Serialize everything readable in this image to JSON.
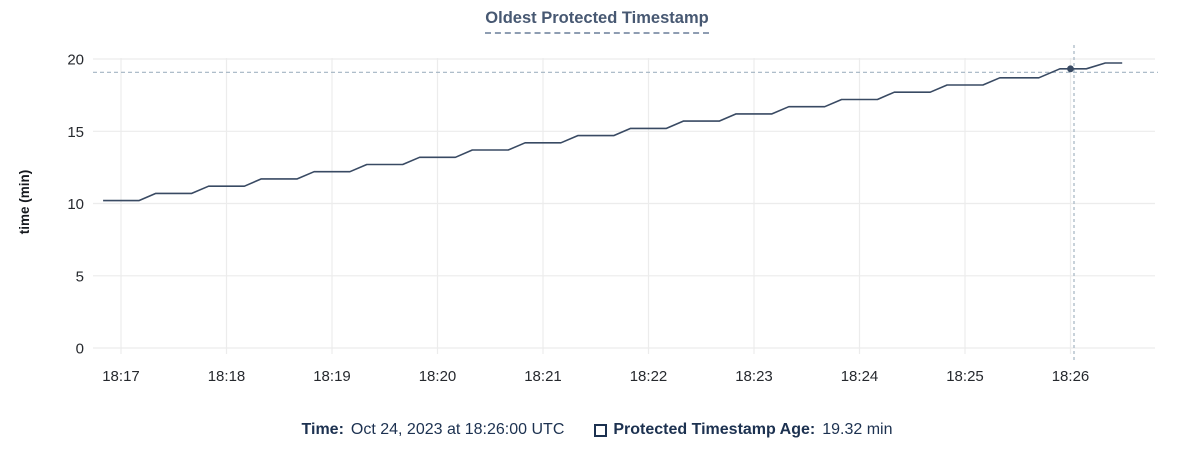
{
  "page": {
    "background": "#ffffff"
  },
  "chart": {
    "title": "Oldest Protected Timestamp",
    "y_axis_label": "time (min)"
  },
  "legend": {
    "time_label": "Time:",
    "time_value": "Oct 24, 2023 at 18:26:00 UTC",
    "series_swatch_icon": "empty-square-outline",
    "series_label": "Protected Timestamp Age:",
    "series_value": "19.32 min"
  },
  "chart_data": {
    "type": "line",
    "title": "Oldest Protected Timestamp",
    "xlabel": "",
    "ylabel": "time (min)",
    "grid": true,
    "legend_position": "bottom",
    "ylim": [
      0,
      20.5
    ],
    "y_ticks": [
      0,
      5,
      10,
      15,
      20
    ],
    "x_ticks": [
      {
        "t": 17,
        "label": "18:17"
      },
      {
        "t": 18,
        "label": "18:18"
      },
      {
        "t": 19,
        "label": "18:19"
      },
      {
        "t": 20,
        "label": "18:20"
      },
      {
        "t": 21,
        "label": "18:21"
      },
      {
        "t": 22,
        "label": "18:22"
      },
      {
        "t": 23,
        "label": "18:23"
      },
      {
        "t": 24,
        "label": "18:24"
      },
      {
        "t": 25,
        "label": "18:25"
      },
      {
        "t": 26,
        "label": "18:26"
      }
    ],
    "x_unit": "minutes after 18:00 UTC, Oct 24 2023",
    "xlim": [
      16.73,
      26.8
    ],
    "series": [
      {
        "name": "Protected Timestamp Age",
        "color": "#394a63",
        "points": [
          [
            16.83,
            10.2
          ],
          [
            17.17,
            10.2
          ],
          [
            17.33,
            10.7
          ],
          [
            17.67,
            10.7
          ],
          [
            17.83,
            11.2
          ],
          [
            18.17,
            11.2
          ],
          [
            18.33,
            11.7
          ],
          [
            18.67,
            11.7
          ],
          [
            18.83,
            12.2
          ],
          [
            19.17,
            12.2
          ],
          [
            19.33,
            12.7
          ],
          [
            19.67,
            12.7
          ],
          [
            19.83,
            13.2
          ],
          [
            20.17,
            13.2
          ],
          [
            20.33,
            13.7
          ],
          [
            20.67,
            13.7
          ],
          [
            20.83,
            14.2
          ],
          [
            21.17,
            14.2
          ],
          [
            21.33,
            14.7
          ],
          [
            21.67,
            14.7
          ],
          [
            21.83,
            15.2
          ],
          [
            22.17,
            15.2
          ],
          [
            22.33,
            15.7
          ],
          [
            22.67,
            15.7
          ],
          [
            22.83,
            16.2
          ],
          [
            23.17,
            16.2
          ],
          [
            23.33,
            16.7
          ],
          [
            23.67,
            16.7
          ],
          [
            23.83,
            17.2
          ],
          [
            24.17,
            17.2
          ],
          [
            24.33,
            17.7
          ],
          [
            24.67,
            17.7
          ],
          [
            24.83,
            18.2
          ],
          [
            25.17,
            18.2
          ],
          [
            25.33,
            18.7
          ],
          [
            25.7,
            18.7
          ],
          [
            25.9,
            19.32
          ],
          [
            26.15,
            19.32
          ],
          [
            26.33,
            19.72
          ],
          [
            26.49,
            19.72
          ]
        ]
      }
    ],
    "crosshair": {
      "t": 26.0,
      "time": "18:26:00",
      "value": 19.32
    },
    "colors": {
      "grid": "#ececec",
      "tick_text": "#26292e",
      "crosshair": "#a3b4c2",
      "title": "#475872",
      "legend_text": "#1c3150",
      "series_line": "#394a63"
    }
  }
}
